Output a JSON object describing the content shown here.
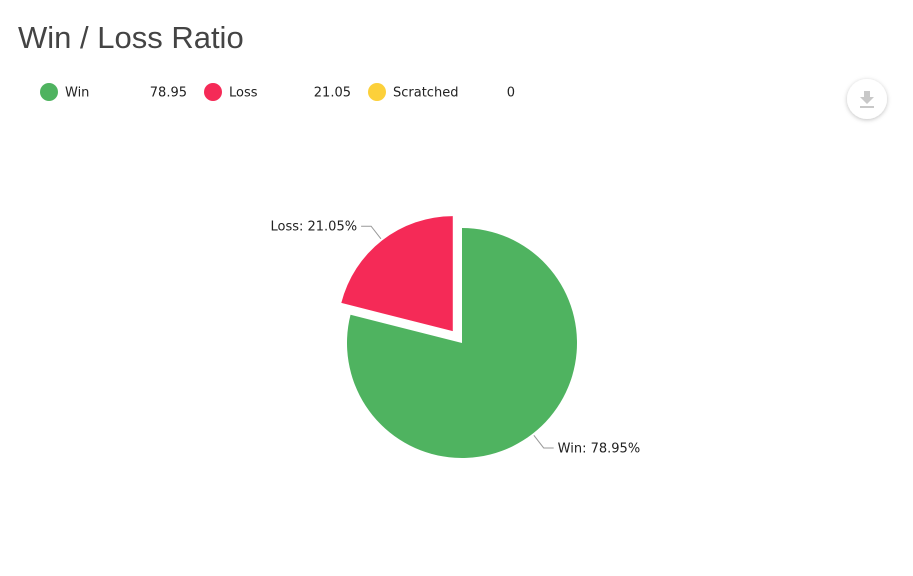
{
  "chart_data": {
    "type": "pie",
    "title": "Win / Loss Ratio",
    "categories": [
      "Win",
      "Loss",
      "Scratched"
    ],
    "values": [
      78.95,
      21.05,
      0
    ],
    "value_labels": [
      "Win: 78.95%",
      "Loss: 21.05%",
      null
    ],
    "colors": [
      "#4fb360",
      "#f52a57",
      "#fcd03a"
    ]
  }
}
